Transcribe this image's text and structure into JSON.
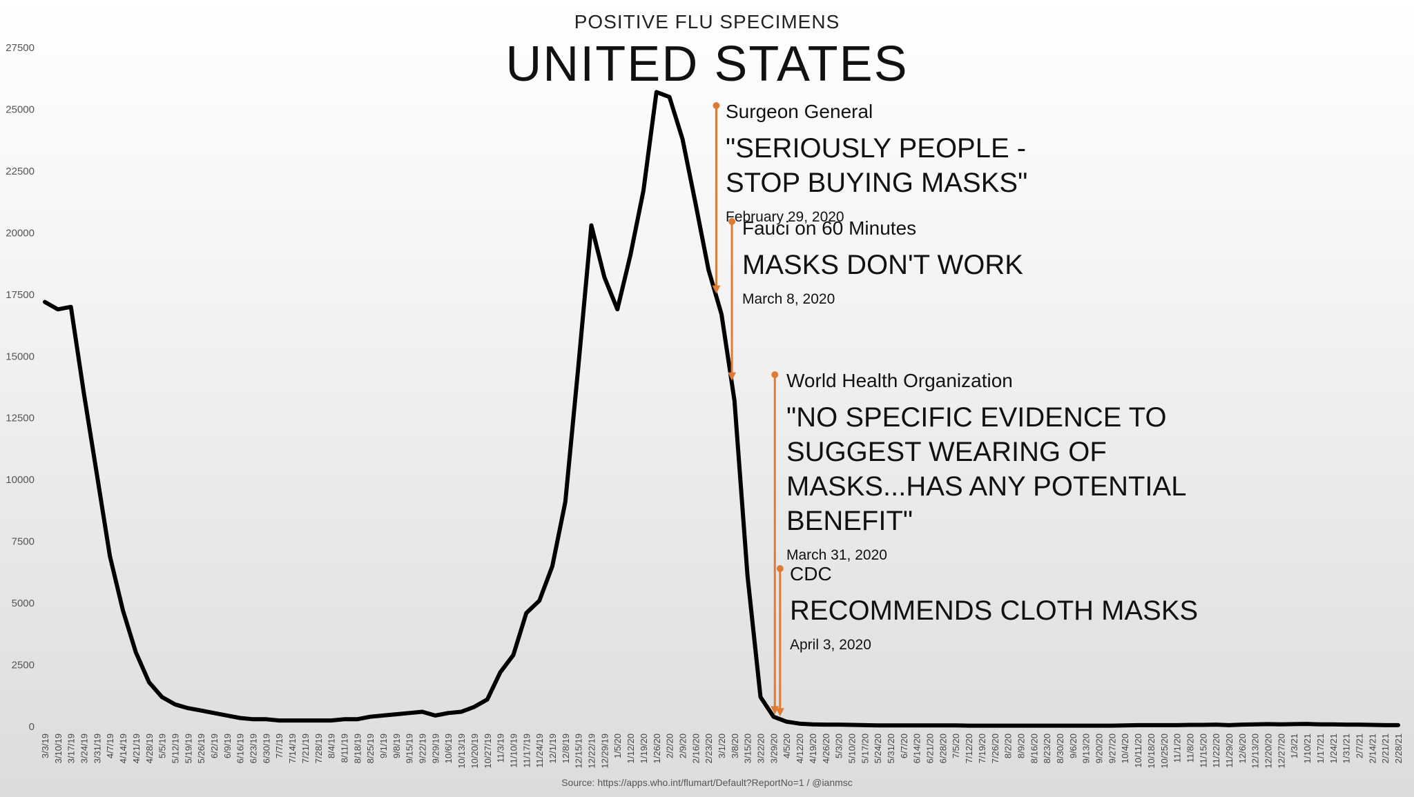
{
  "header": {
    "subtitle": "POSITIVE FLU SPECIMENS",
    "title": "UNITED STATES"
  },
  "annotations": [
    {
      "who": "Surgeon General",
      "quote": "\"SERIOUSLY PEOPLE -\nSTOP BUYING MASKS\"",
      "date": "February 29, 2020",
      "x_index": 51.6
    },
    {
      "who": "Fauci on 60 Minutes",
      "quote": "MASKS DON'T WORK",
      "date": "March 8, 2020",
      "x_index": 52.8
    },
    {
      "who": "World Health Organization",
      "quote": "\"NO SPECIFIC EVIDENCE TO\nSUGGEST WEARING OF\nMASKS...HAS ANY POTENTIAL\nBENEFIT\"",
      "date": "March 31, 2020",
      "x_index": 56.1
    },
    {
      "who": "CDC",
      "quote": "RECOMMENDS CLOTH MASKS",
      "date": "April 3, 2020",
      "x_index": 56.5
    }
  ],
  "source": "Source: https://apps.who.int/flumart/Default?ReportNo=1 / @ianmsc",
  "colors": {
    "line": "#000000",
    "annotation": "#e07b35"
  },
  "chart_data": {
    "type": "line",
    "title": "POSITIVE FLU SPECIMENS",
    "subtitle": "UNITED STATES",
    "ylim": [
      0,
      27500
    ],
    "yticks": [
      0,
      2500,
      5000,
      7500,
      10000,
      12500,
      15000,
      17500,
      20000,
      22500,
      25000,
      27500
    ],
    "grid": false,
    "categories": [
      "3/3/19",
      "3/10/19",
      "3/17/19",
      "3/24/19",
      "3/31/19",
      "4/7/19",
      "4/14/19",
      "4/21/19",
      "4/28/19",
      "5/5/19",
      "5/12/19",
      "5/19/19",
      "5/26/19",
      "6/2/19",
      "6/9/19",
      "6/16/19",
      "6/23/19",
      "6/30/19",
      "7/7/19",
      "7/14/19",
      "7/21/19",
      "7/28/19",
      "8/4/19",
      "8/11/19",
      "8/18/19",
      "8/25/19",
      "9/1/19",
      "9/8/19",
      "9/15/19",
      "9/22/19",
      "9/29/19",
      "10/6/19",
      "10/13/19",
      "10/20/19",
      "10/27/19",
      "11/3/19",
      "11/10/19",
      "11/17/19",
      "11/24/19",
      "12/1/19",
      "12/8/19",
      "12/15/19",
      "12/22/19",
      "12/29/19",
      "1/5/20",
      "1/12/20",
      "1/19/20",
      "1/26/20",
      "2/2/20",
      "2/9/20",
      "2/16/20",
      "2/23/20",
      "3/1/20",
      "3/8/20",
      "3/15/20",
      "3/22/20",
      "3/29/20",
      "4/5/20",
      "4/12/20",
      "4/19/20",
      "4/26/20",
      "5/3/20",
      "5/10/20",
      "5/17/20",
      "5/24/20",
      "5/31/20",
      "6/7/20",
      "6/14/20",
      "6/21/20",
      "6/28/20",
      "7/5/20",
      "7/12/20",
      "7/19/20",
      "7/26/20",
      "8/2/20",
      "8/9/20",
      "8/16/20",
      "8/23/20",
      "8/30/20",
      "9/6/20",
      "9/13/20",
      "9/20/20",
      "9/27/20",
      "10/4/20",
      "10/11/20",
      "10/18/20",
      "10/25/20",
      "11/1/20",
      "11/8/20",
      "11/15/20",
      "11/22/20",
      "11/29/20",
      "12/6/20",
      "12/13/20",
      "12/20/20",
      "12/27/20",
      "1/3/21",
      "1/10/21",
      "1/17/21",
      "1/24/21",
      "1/31/21",
      "2/7/21",
      "2/14/21",
      "2/21/21",
      "2/28/21"
    ],
    "series": [
      {
        "values": [
          17200,
          16900,
          17000,
          13500,
          10200,
          6900,
          4700,
          3000,
          1800,
          1200,
          900,
          750,
          650,
          550,
          450,
          350,
          300,
          300,
          250,
          250,
          250,
          250,
          250,
          300,
          300,
          400,
          450,
          500,
          550,
          600,
          450,
          550,
          600,
          800,
          1100,
          2200,
          2900,
          4600,
          5100,
          6500,
          9100,
          14600,
          20300,
          18200,
          16900,
          19100,
          21700,
          25700,
          25500,
          23800,
          21200,
          18500,
          16700,
          13200,
          6100,
          1200,
          400,
          200,
          120,
          90,
          80,
          80,
          70,
          60,
          50,
          50,
          50,
          50,
          50,
          50,
          50,
          40,
          40,
          40,
          40,
          40,
          40,
          40,
          40,
          40,
          40,
          40,
          40,
          50,
          60,
          60,
          60,
          60,
          70,
          70,
          80,
          60,
          80,
          90,
          100,
          90,
          100,
          110,
          90,
          90,
          80,
          80,
          70,
          60,
          60
        ]
      }
    ]
  }
}
